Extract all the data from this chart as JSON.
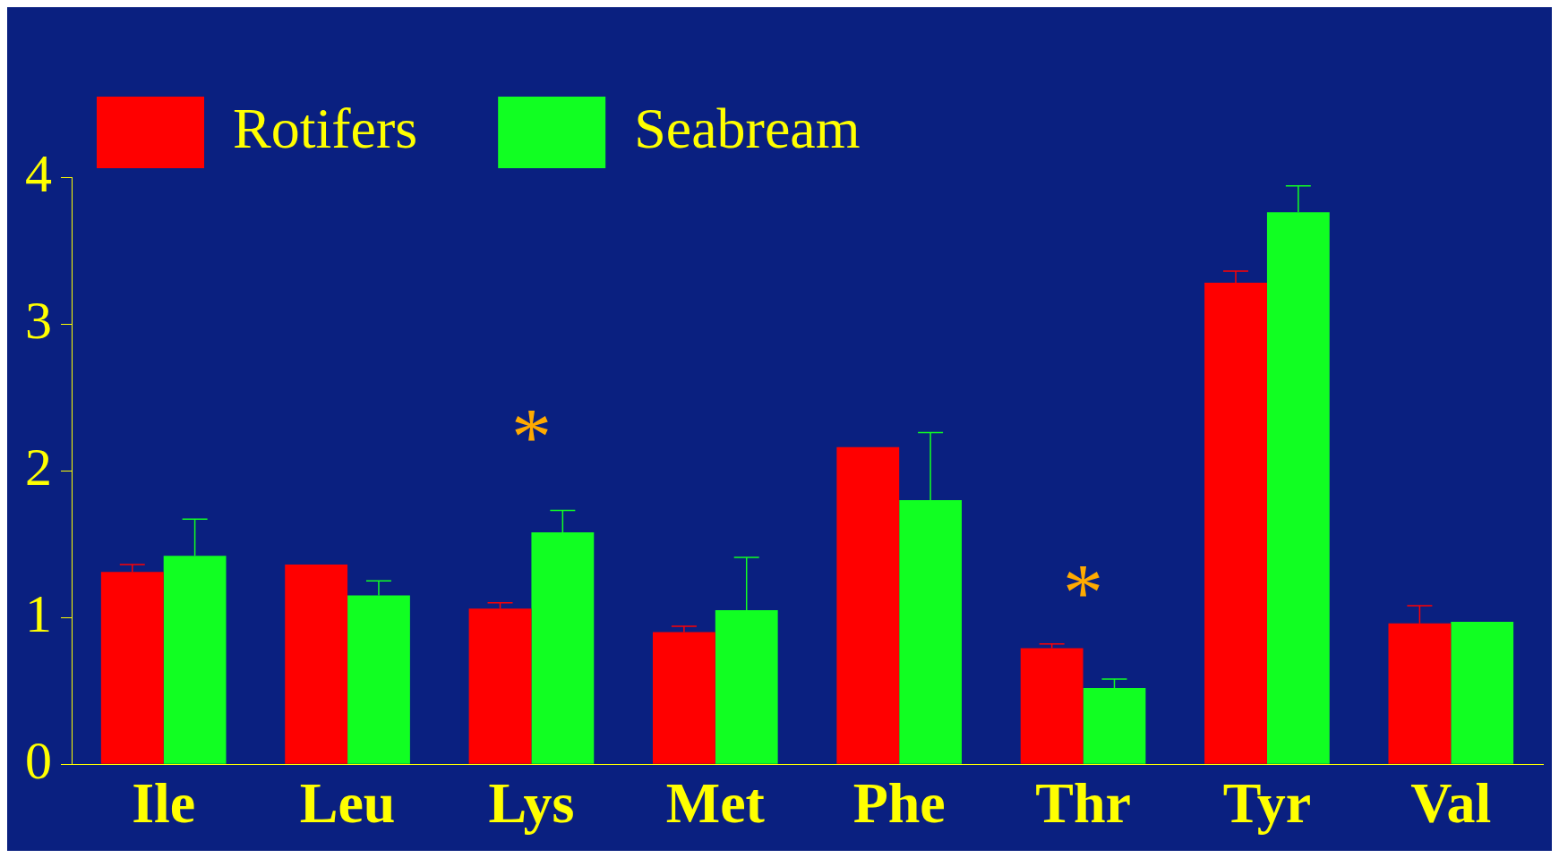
{
  "chart_data": {
    "type": "bar",
    "categories": [
      "Ile",
      "Leu",
      "Lys",
      "Met",
      "Phe",
      "Thr",
      "Tyr",
      "Val"
    ],
    "series": [
      {
        "name": "Rotifers",
        "color": "#ff0000",
        "values": [
          1.31,
          1.36,
          1.06,
          0.9,
          2.16,
          0.79,
          3.28,
          0.96
        ],
        "errors": [
          [
            1.31,
            1.36
          ],
          null,
          [
            1.06,
            1.1
          ],
          [
            0.9,
            0.94
          ],
          null,
          [
            0.79,
            0.82
          ],
          [
            3.28,
            3.36
          ],
          [
            0.96,
            1.08
          ]
        ]
      },
      {
        "name": "Seabream",
        "color": "#11ff22",
        "values": [
          1.42,
          1.15,
          1.58,
          1.05,
          1.8,
          0.52,
          3.76,
          0.97
        ],
        "errors": [
          [
            1.42,
            1.67
          ],
          [
            1.15,
            1.25
          ],
          [
            1.58,
            1.73
          ],
          [
            1.05,
            1.41
          ],
          [
            1.8,
            2.26
          ],
          [
            0.52,
            0.58
          ],
          [
            3.76,
            3.94
          ],
          null
        ]
      }
    ],
    "ylim": [
      0,
      4
    ],
    "yticks": [
      0,
      1,
      2,
      3,
      4
    ],
    "grid": false,
    "legend": "top left",
    "annotations": [
      "*",
      "*"
    ]
  }
}
